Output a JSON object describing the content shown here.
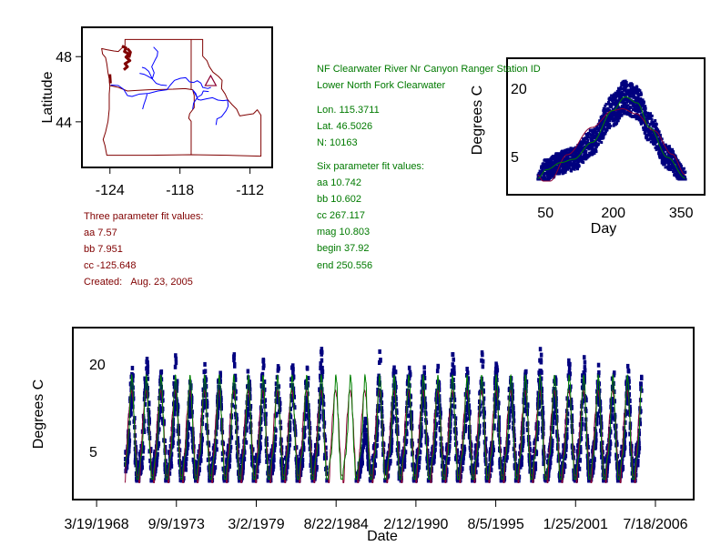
{
  "colors": {
    "observed_points": "#00007f",
    "six_param_fit": "#008000",
    "three_param_fit": "#8b0033",
    "map_boundaries": "#800000",
    "map_rivers": "#0000ff",
    "site_marker": "#8b0033",
    "three_param_text": "#800000",
    "station_text": "#007a00"
  },
  "three_param": {
    "title": "Three parameter fit values:",
    "aa": "aa 7.57",
    "bb": "bb 7.951",
    "cc": "cc -125.648",
    "created_label": "Created:",
    "created": "Aug. 23, 2005"
  },
  "station": {
    "name": "NF Clearwater River Nr Canyon Ranger Station ID",
    "basin": "Lower North Fork Clearwater",
    "lon": "Lon. 115.3711",
    "lat": "Lat. 46.5026",
    "n": "N: 10163"
  },
  "six_param": {
    "title": "Six parameter fit values:",
    "lines": [
      "aa 10.742",
      "bb 10.602",
      "cc 267.117",
      "mag 10.803",
      "begin 37.92",
      "end 250.556"
    ]
  },
  "chart_data": [
    {
      "type": "map",
      "ylabel": "Latitude",
      "xlabel": "",
      "xlim": [
        -126.4,
        -110.1
      ],
      "ylim": [
        41.2,
        49.8
      ],
      "xticks": [
        -124,
        -118,
        -112
      ],
      "xtick_labels": [
        "-124",
        "-118",
        "-112"
      ],
      "yticks": [
        48,
        44
      ],
      "ytick_labels": [
        "48",
        "44"
      ],
      "site": {
        "lon": -115.3711,
        "lat": 46.5026,
        "marker": "triangle"
      }
    },
    {
      "type": "scatter",
      "xlabel": "Day",
      "ylabel": "Degrees C",
      "xlim": [
        -35,
        402
      ],
      "ylim": [
        -3.4,
        26.6
      ],
      "xticks": [
        50,
        200,
        350
      ],
      "xtick_labels": [
        "50",
        "200",
        "350"
      ],
      "yticks": [
        20,
        5
      ],
      "ytick_labels": [
        "20",
        "5"
      ],
      "observed_day_range": [
        33,
        360
      ],
      "observed_temp_range": [
        0,
        21.7
      ],
      "series": [
        {
          "kind": "line",
          "color": "#008000",
          "x": [
            33,
            52,
            85,
            112,
            153,
            199,
            226,
            253,
            280,
            320,
            360
          ],
          "y": [
            0.2,
            2.1,
            3.7,
            4.4,
            8.1,
            15.1,
            18.1,
            16.8,
            11.4,
            4.8,
            0.2
          ]
        },
        {
          "kind": "line",
          "color": "#8b0033",
          "x": [
            33,
            45,
            60,
            98,
            153,
            199,
            220,
            250,
            290,
            330,
            360
          ],
          "y": [
            0.9,
            -0.4,
            -0.4,
            5.4,
            11.4,
            15.1,
            15.5,
            14.4,
            10.7,
            5.5,
            0.9
          ]
        }
      ]
    },
    {
      "type": "scatter",
      "xlabel": "Date",
      "ylabel": "Degrees C",
      "xlim": [
        "1966-08",
        "2009-03"
      ],
      "ylim": [
        -3.3,
        26.25
      ],
      "xtick_labels": [
        "3/19/1968",
        "9/9/1973",
        "3/2/1979",
        "8/22/1984",
        "2/12/1990",
        "8/5/1995",
        "1/25/2001",
        "7/18/2006"
      ],
      "yticks": [
        20,
        5
      ],
      "ytick_labels": [
        "20",
        "5"
      ],
      "observed_period": [
        "1970-03",
        "2005-08"
      ],
      "years": [
        1970,
        1971,
        1972,
        1973,
        1974,
        1975,
        1976,
        1977,
        1978,
        1979,
        1980,
        1981,
        1982,
        1983,
        1984,
        1985,
        1986,
        1987,
        1988,
        1989,
        1990,
        1991,
        1992,
        1993,
        1994,
        1995,
        1996,
        1997,
        1998,
        1999,
        2000,
        2001,
        2002,
        2003,
        2004,
        2005
      ],
      "annual_observed_max": [
        20.3,
        22.2,
        20.0,
        21.6,
        17.5,
        20.7,
        20.3,
        21.8,
        20.7,
        21.2,
        20.7,
        20.9,
        20.3,
        23.1,
        null,
        null,
        11.0,
        22.2,
        20.9,
        20.9,
        21.1,
        20.4,
        22.3,
        19.2,
        23.1,
        20.7,
        20.5,
        19.6,
        23.1,
        19.6,
        21.8,
        21.6,
        20.3,
        20.1,
        21.0,
        21.5
      ],
      "fit_lines": [
        "six_param_fit",
        "three_param_fit"
      ]
    }
  ]
}
